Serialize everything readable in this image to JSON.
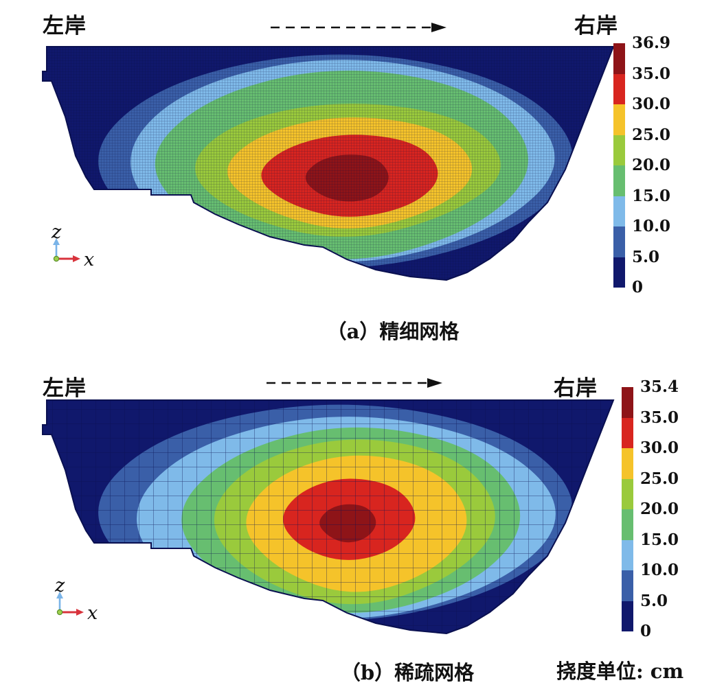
{
  "figure": {
    "unit_label": "挠度单位: cm",
    "contour_colors_low_to_high": [
      "#10186c",
      "#3a5fa8",
      "#7fbae9",
      "#67be70",
      "#9aca3c",
      "#f5c32a",
      "#d8251f",
      "#8e1418"
    ],
    "panels": [
      {
        "caption": "（a）精细网格",
        "mesh_type": "fine",
        "left_bank_label": "左岸",
        "right_bank_label": "右岸",
        "axis_labels": {
          "vertical": "z",
          "horizontal": "x"
        },
        "colorbar": {
          "tick_labels": [
            "36.9",
            "35.0",
            "30.0",
            "25.0",
            "20.0",
            "15.0",
            "10.0",
            "5.0",
            "0"
          ],
          "segment_colors_top_to_bottom": [
            "#8e1418",
            "#d8251f",
            "#f5c32a",
            "#9aca3c",
            "#67be70",
            "#7fbae9",
            "#3a5fa8",
            "#10186c"
          ]
        }
      },
      {
        "caption": "（b）稀疏网格",
        "mesh_type": "sparse",
        "left_bank_label": "左岸",
        "right_bank_label": "右岸",
        "axis_labels": {
          "vertical": "z",
          "horizontal": "x"
        },
        "colorbar": {
          "tick_labels": [
            "35.4",
            "35.0",
            "30.0",
            "25.0",
            "20.0",
            "15.0",
            "10.0",
            "5.0",
            "0"
          ],
          "segment_colors_top_to_bottom": [
            "#8e1418",
            "#d8251f",
            "#f5c32a",
            "#9aca3c",
            "#67be70",
            "#7fbae9",
            "#3a5fa8",
            "#10186c"
          ]
        }
      }
    ]
  },
  "chart_data": [
    {
      "type": "contour",
      "panel": "a",
      "title": "（a）精细网格",
      "mesh": "精细网格 (fine mesh)",
      "quantity": "挠度 (deflection)",
      "unit": "cm",
      "value_max": 36.9,
      "contour_levels": [
        0,
        5.0,
        10.0,
        15.0,
        20.0,
        25.0,
        30.0,
        35.0,
        36.9
      ],
      "level_colors_low_to_high": [
        "#10186c",
        "#3a5fa8",
        "#7fbae9",
        "#67be70",
        "#9aca3c",
        "#f5c32a",
        "#d8251f",
        "#8e1418"
      ],
      "colorbar_tick_labels": [
        "36.9",
        "35.0",
        "30.0",
        "25.0",
        "20.0",
        "15.0",
        "10.0",
        "5.0",
        "0"
      ],
      "left_label": "左岸",
      "right_label": "右岸",
      "axes": {
        "up": "z",
        "right": "x"
      },
      "peak": {
        "value": 36.9,
        "location": "slightly left of dam center, mid-height"
      }
    },
    {
      "type": "contour",
      "panel": "b",
      "title": "（b）稀疏网格",
      "mesh": "稀疏网格 (sparse mesh)",
      "quantity": "挠度 (deflection)",
      "unit": "cm",
      "value_max": 35.4,
      "contour_levels": [
        0,
        5.0,
        10.0,
        15.0,
        20.0,
        25.0,
        30.0,
        35.0,
        35.4
      ],
      "level_colors_low_to_high": [
        "#10186c",
        "#3a5fa8",
        "#7fbae9",
        "#67be70",
        "#9aca3c",
        "#f5c32a",
        "#d8251f",
        "#8e1418"
      ],
      "colorbar_tick_labels": [
        "35.4",
        "35.0",
        "30.0",
        "25.0",
        "20.0",
        "15.0",
        "10.0",
        "5.0",
        "0"
      ],
      "left_label": "左岸",
      "right_label": "右岸",
      "axes": {
        "up": "z",
        "right": "x"
      },
      "peak": {
        "value": 35.4,
        "location": "slightly left of dam center, mid-height"
      }
    }
  ]
}
